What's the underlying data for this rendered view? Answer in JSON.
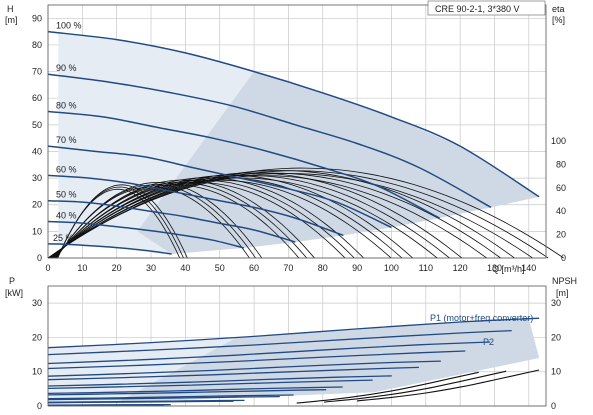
{
  "chart_data": [
    {
      "type": "line",
      "title": "CRE 90-2-1, 3*380 V",
      "xlabel": "Q [m³/h]",
      "ylabel": "H [m]",
      "y2label": "eta [%]",
      "xlim": [
        0,
        145
      ],
      "ylim": [
        0,
        95
      ],
      "y2lim": [
        0,
        100
      ],
      "x_ticks": [
        0,
        10,
        20,
        30,
        40,
        50,
        60,
        70,
        80,
        90,
        100,
        110,
        120,
        130,
        140
      ],
      "y_ticks": [
        0,
        10,
        20,
        30,
        40,
        50,
        60,
        70,
        80,
        90
      ],
      "y2_ticks": [
        0,
        20,
        40,
        60,
        80,
        100
      ],
      "grid": true,
      "speed_labels": [
        "100 %",
        "90 %",
        "80 %",
        "70 %",
        "60 %",
        "50 %",
        "40 %",
        "25 %"
      ],
      "series": [
        {
          "name": "100 %",
          "x": [
            0,
            20,
            40,
            60,
            80,
            100,
            120,
            143
          ],
          "y": [
            85,
            82,
            77,
            70,
            62,
            53,
            42,
            23
          ]
        },
        {
          "name": "90 %",
          "x": [
            0,
            18,
            36,
            54,
            72,
            90,
            108,
            129
          ],
          "y": [
            69,
            66,
            62,
            57,
            50,
            43,
            34,
            19
          ]
        },
        {
          "name": "80 %",
          "x": [
            0,
            16,
            32,
            48,
            64,
            80,
            96,
            114
          ],
          "y": [
            55,
            53,
            49,
            45,
            40,
            34,
            27,
            15
          ]
        },
        {
          "name": "70 %",
          "x": [
            0,
            14,
            28,
            42,
            56,
            70,
            84,
            100
          ],
          "y": [
            42,
            40,
            38,
            34,
            30,
            26,
            21,
            11.5
          ]
        },
        {
          "name": "60 %",
          "x": [
            0,
            12,
            24,
            36,
            48,
            60,
            72,
            86
          ],
          "y": [
            31,
            30,
            28,
            25,
            22,
            19,
            15,
            8.5
          ]
        },
        {
          "name": "50 %",
          "x": [
            0,
            10,
            20,
            30,
            40,
            50,
            60,
            72
          ],
          "y": [
            21.5,
            21,
            19.5,
            17.5,
            15.5,
            13,
            10.5,
            6
          ]
        },
        {
          "name": "40 %",
          "x": [
            0,
            8,
            16,
            24,
            32,
            40,
            48,
            57
          ],
          "y": [
            13.7,
            13.3,
            12.3,
            11.2,
            9.9,
            8.4,
            6.7,
            3.8
          ]
        },
        {
          "name": "25 %",
          "x": [
            0,
            5,
            10,
            15,
            20,
            25,
            30,
            36
          ],
          "y": [
            5.3,
            5.2,
            4.8,
            4.4,
            3.9,
            3.3,
            2.6,
            1.5
          ]
        }
      ],
      "efficiency_max_eta": 75
    },
    {
      "type": "line",
      "xlabel": "",
      "ylabel": "P [kW]",
      "y2label": "NPSH [m]",
      "xlim": [
        0,
        145
      ],
      "ylim": [
        0,
        35
      ],
      "y2lim": [
        0,
        35
      ],
      "y_ticks": [
        0,
        10,
        20,
        30
      ],
      "y2_ticks": [
        0,
        10,
        20,
        30
      ],
      "grid": true,
      "annotations": [
        "P1 (motor+freq.converter)",
        "P2"
      ],
      "series": [
        {
          "name": "P1 (motor+freq.converter)",
          "x": [
            0,
            30,
            60,
            90,
            120,
            143
          ],
          "y": [
            17,
            18.5,
            20.3,
            22.5,
            24.5,
            25.6
          ]
        },
        {
          "name": "P2",
          "x": [
            0,
            30,
            60,
            90,
            120,
            135
          ],
          "y": [
            15,
            16.3,
            17.8,
            19.6,
            21.3,
            22
          ]
        }
      ],
      "npsh": {
        "x": [
          90,
          100,
          110,
          120,
          130,
          143
        ],
        "y": [
          1.5,
          2.5,
          3.8,
          5.5,
          7.6,
          10.5
        ]
      }
    }
  ]
}
